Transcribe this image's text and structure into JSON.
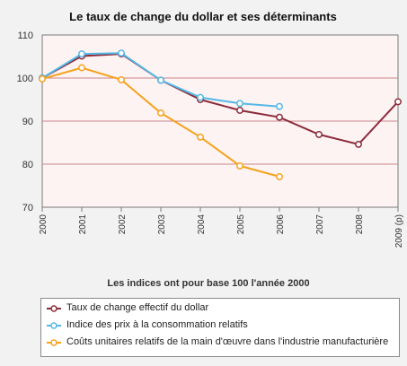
{
  "chart_data": {
    "type": "line",
    "title": "Le taux de change du dollar et ses déterminants",
    "subtitle": "Les indices ont pour base 100 l'année 2000",
    "categories": [
      "2000",
      "2001",
      "2002",
      "2003",
      "2004",
      "2005",
      "2006",
      "2007",
      "2008",
      "2009 (p)"
    ],
    "y_ticks": [
      "70",
      "80",
      "90",
      "100",
      "110"
    ],
    "ylim": [
      70,
      110
    ],
    "grid": true,
    "series": [
      {
        "name": "Taux de change effectif du dollar",
        "color": "#8b2b3a",
        "values": [
          100,
          105.1,
          105.6,
          99.5,
          95,
          92.5,
          90.9,
          86.9,
          84.6,
          94.5
        ]
      },
      {
        "name": "Indice des prix à la consommation relatifs",
        "color": "#55b8e6",
        "values": [
          100,
          105.6,
          105.8,
          99.5,
          95.5,
          94.1,
          93.4,
          null,
          null,
          null
        ]
      },
      {
        "name": "Coûts unitaires relatifs de la main d'œuvre dans l'industrie manufacturière",
        "color": "#f5a21c",
        "values": [
          99.8,
          102.4,
          99.6,
          91.9,
          86.3,
          79.6,
          77.1,
          null,
          null,
          null
        ]
      }
    ],
    "legend": "bottom"
  }
}
